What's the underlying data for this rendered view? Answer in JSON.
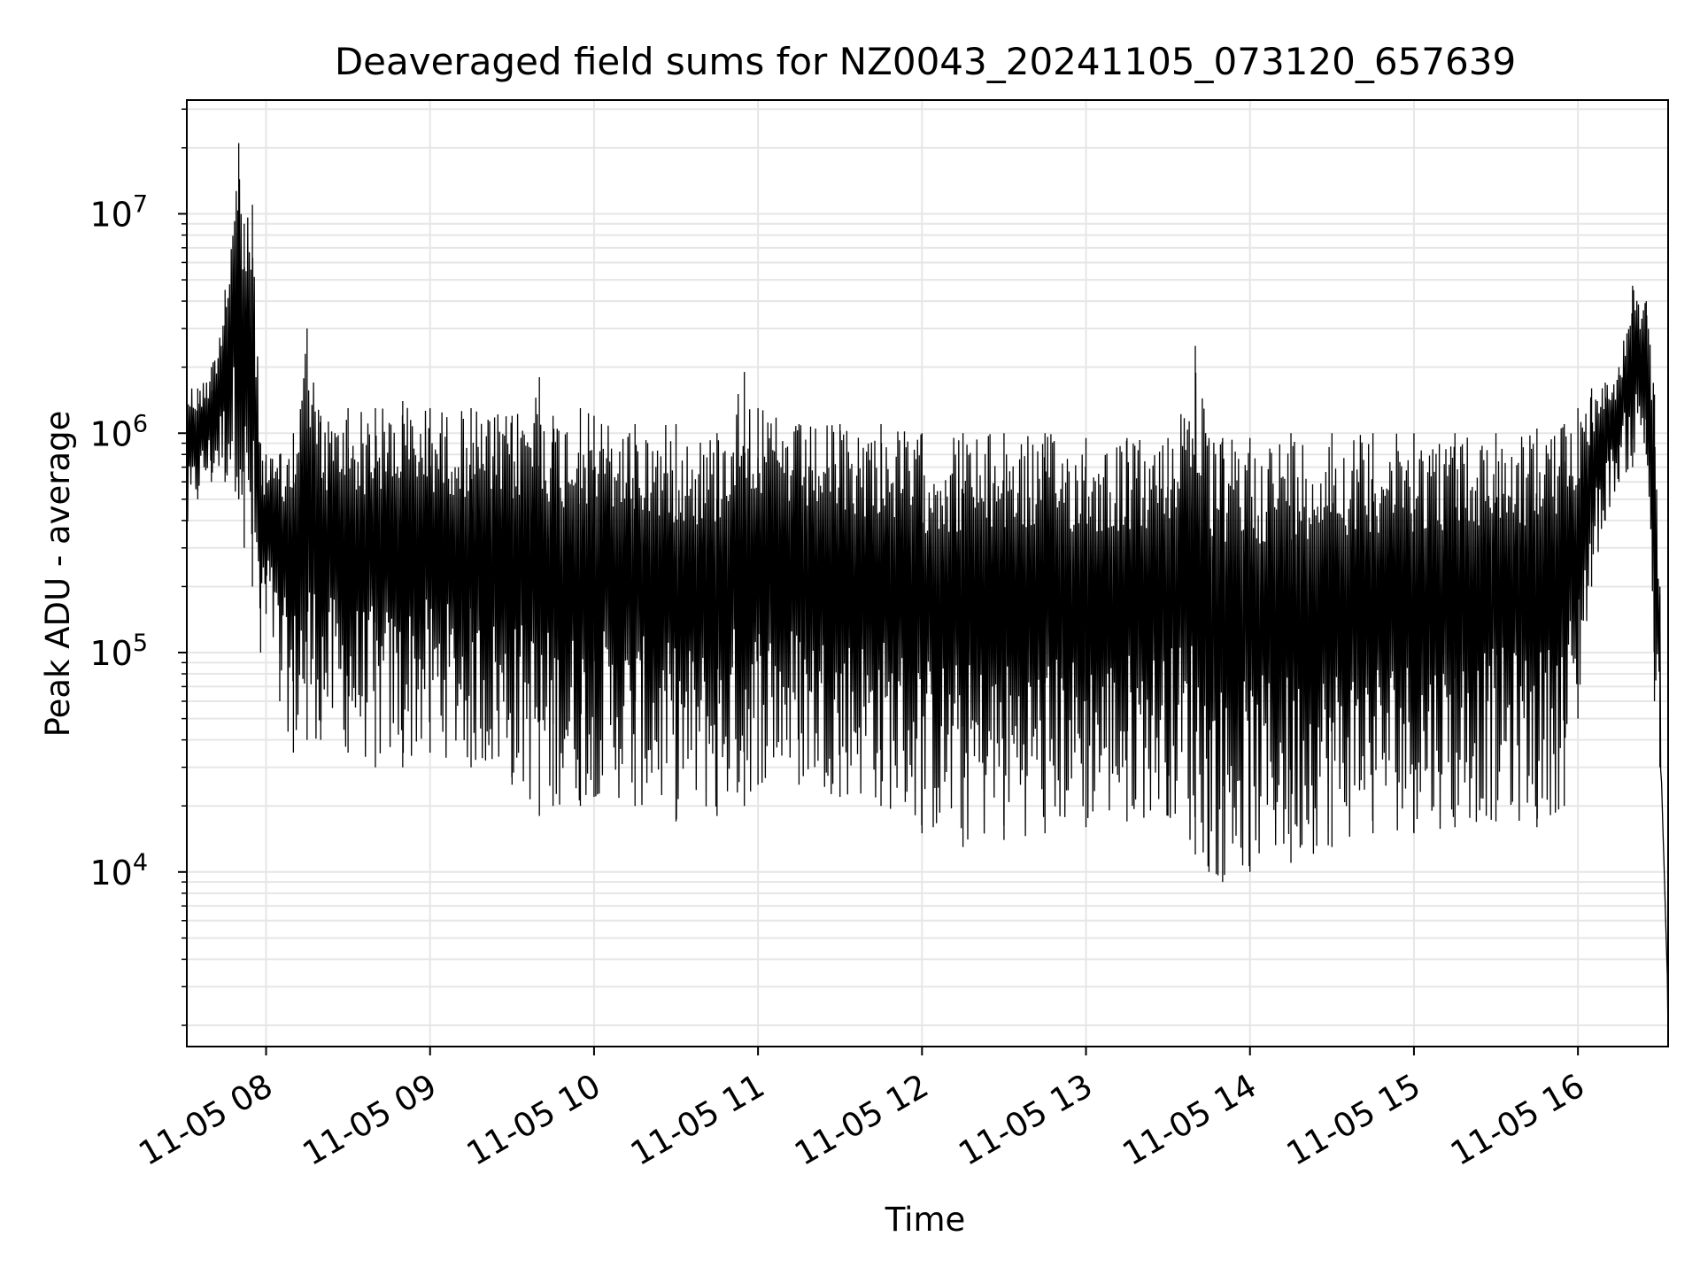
{
  "chart_data": {
    "type": "line",
    "title": "Deaveraged field sums for NZ0043_20241105_073120_657639",
    "xlabel": "Time",
    "ylabel": "Peak ADU - average",
    "xscale": "time",
    "yscale": "log",
    "xlim": [
      "2024-11-05 07:31",
      "2024-11-05 16:33"
    ],
    "ylim": [
      1600,
      33000000
    ],
    "grid": true,
    "x_ticks": [
      "11-05 08",
      "11-05 09",
      "11-05 10",
      "11-05 11",
      "11-05 12",
      "11-05 13",
      "11-05 14",
      "11-05 15",
      "11-05 16"
    ],
    "y_ticks": [
      {
        "base": "10",
        "exp": "4"
      },
      {
        "base": "10",
        "exp": "5"
      },
      {
        "base": "10",
        "exp": "6"
      },
      {
        "base": "10",
        "exp": "7"
      }
    ],
    "series": [
      {
        "color": "#000000",
        "x": [
          "2024-11-05 07:31",
          "2024-11-05 07:35",
          "2024-11-05 07:40",
          "2024-11-05 07:45",
          "2024-11-05 07:50",
          "2024-11-05 07:52",
          "2024-11-05 07:55",
          "2024-11-05 07:58",
          "2024-11-05 08:00",
          "2024-11-05 08:05",
          "2024-11-05 08:10",
          "2024-11-05 08:15",
          "2024-11-05 08:20",
          "2024-11-05 08:30",
          "2024-11-05 08:40",
          "2024-11-05 08:50",
          "2024-11-05 09:00",
          "2024-11-05 09:15",
          "2024-11-05 09:30",
          "2024-11-05 09:40",
          "2024-11-05 09:45",
          "2024-11-05 09:55",
          "2024-11-05 10:00",
          "2024-11-05 10:15",
          "2024-11-05 10:30",
          "2024-11-05 10:45",
          "2024-11-05 10:55",
          "2024-11-05 11:00",
          "2024-11-05 11:15",
          "2024-11-05 11:30",
          "2024-11-05 11:45",
          "2024-11-05 12:00",
          "2024-11-05 12:15",
          "2024-11-05 12:30",
          "2024-11-05 12:45",
          "2024-11-05 13:00",
          "2024-11-05 13:15",
          "2024-11-05 13:30",
          "2024-11-05 13:40",
          "2024-11-05 13:45",
          "2024-11-05 13:50",
          "2024-11-05 14:00",
          "2024-11-05 14:15",
          "2024-11-05 14:30",
          "2024-11-05 14:45",
          "2024-11-05 15:00",
          "2024-11-05 15:15",
          "2024-11-05 15:30",
          "2024-11-05 15:45",
          "2024-11-05 15:55",
          "2024-11-05 16:00",
          "2024-11-05 16:05",
          "2024-11-05 16:10",
          "2024-11-05 16:15",
          "2024-11-05 16:20",
          "2024-11-05 16:25",
          "2024-11-05 16:28",
          "2024-11-05 16:30",
          "2024-11-05 16:33"
        ],
        "y_high": [
          1800000,
          1600000,
          2000000,
          4500000,
          21000000,
          9000000,
          11000000,
          900000,
          800000,
          800000,
          1000000,
          3000000,
          1200000,
          1300000,
          1300000,
          1400000,
          1300000,
          1300000,
          1200000,
          1800000,
          1200000,
          1300000,
          1200000,
          1100000,
          1100000,
          1000000,
          1900000,
          1300000,
          1100000,
          1100000,
          1100000,
          1000000,
          1000000,
          1000000,
          1000000,
          950000,
          950000,
          950000,
          2500000,
          950000,
          950000,
          950000,
          1000000,
          1000000,
          1000000,
          1000000,
          1000000,
          1000000,
          1050000,
          1100000,
          1300000,
          1600000,
          1700000,
          2000000,
          4700000,
          4000000,
          1500000,
          200000,
          5000
        ],
        "y_low": [
          300000,
          500000,
          600000,
          600000,
          500000,
          300000,
          200000,
          100000,
          150000,
          60000,
          35000,
          40000,
          40000,
          35000,
          30000,
          30000,
          35000,
          30000,
          25000,
          18000,
          20000,
          20000,
          22000,
          20000,
          17000,
          18000,
          20000,
          25000,
          25000,
          22000,
          20000,
          15000,
          13000,
          14000,
          15000,
          16000,
          17000,
          18000,
          12000,
          10000,
          9000,
          10000,
          11000,
          13000,
          15000,
          15000,
          16000,
          17000,
          16000,
          20000,
          50000,
          200000,
          400000,
          600000,
          700000,
          800000,
          60000,
          30000,
          1700
        ]
      }
    ]
  }
}
